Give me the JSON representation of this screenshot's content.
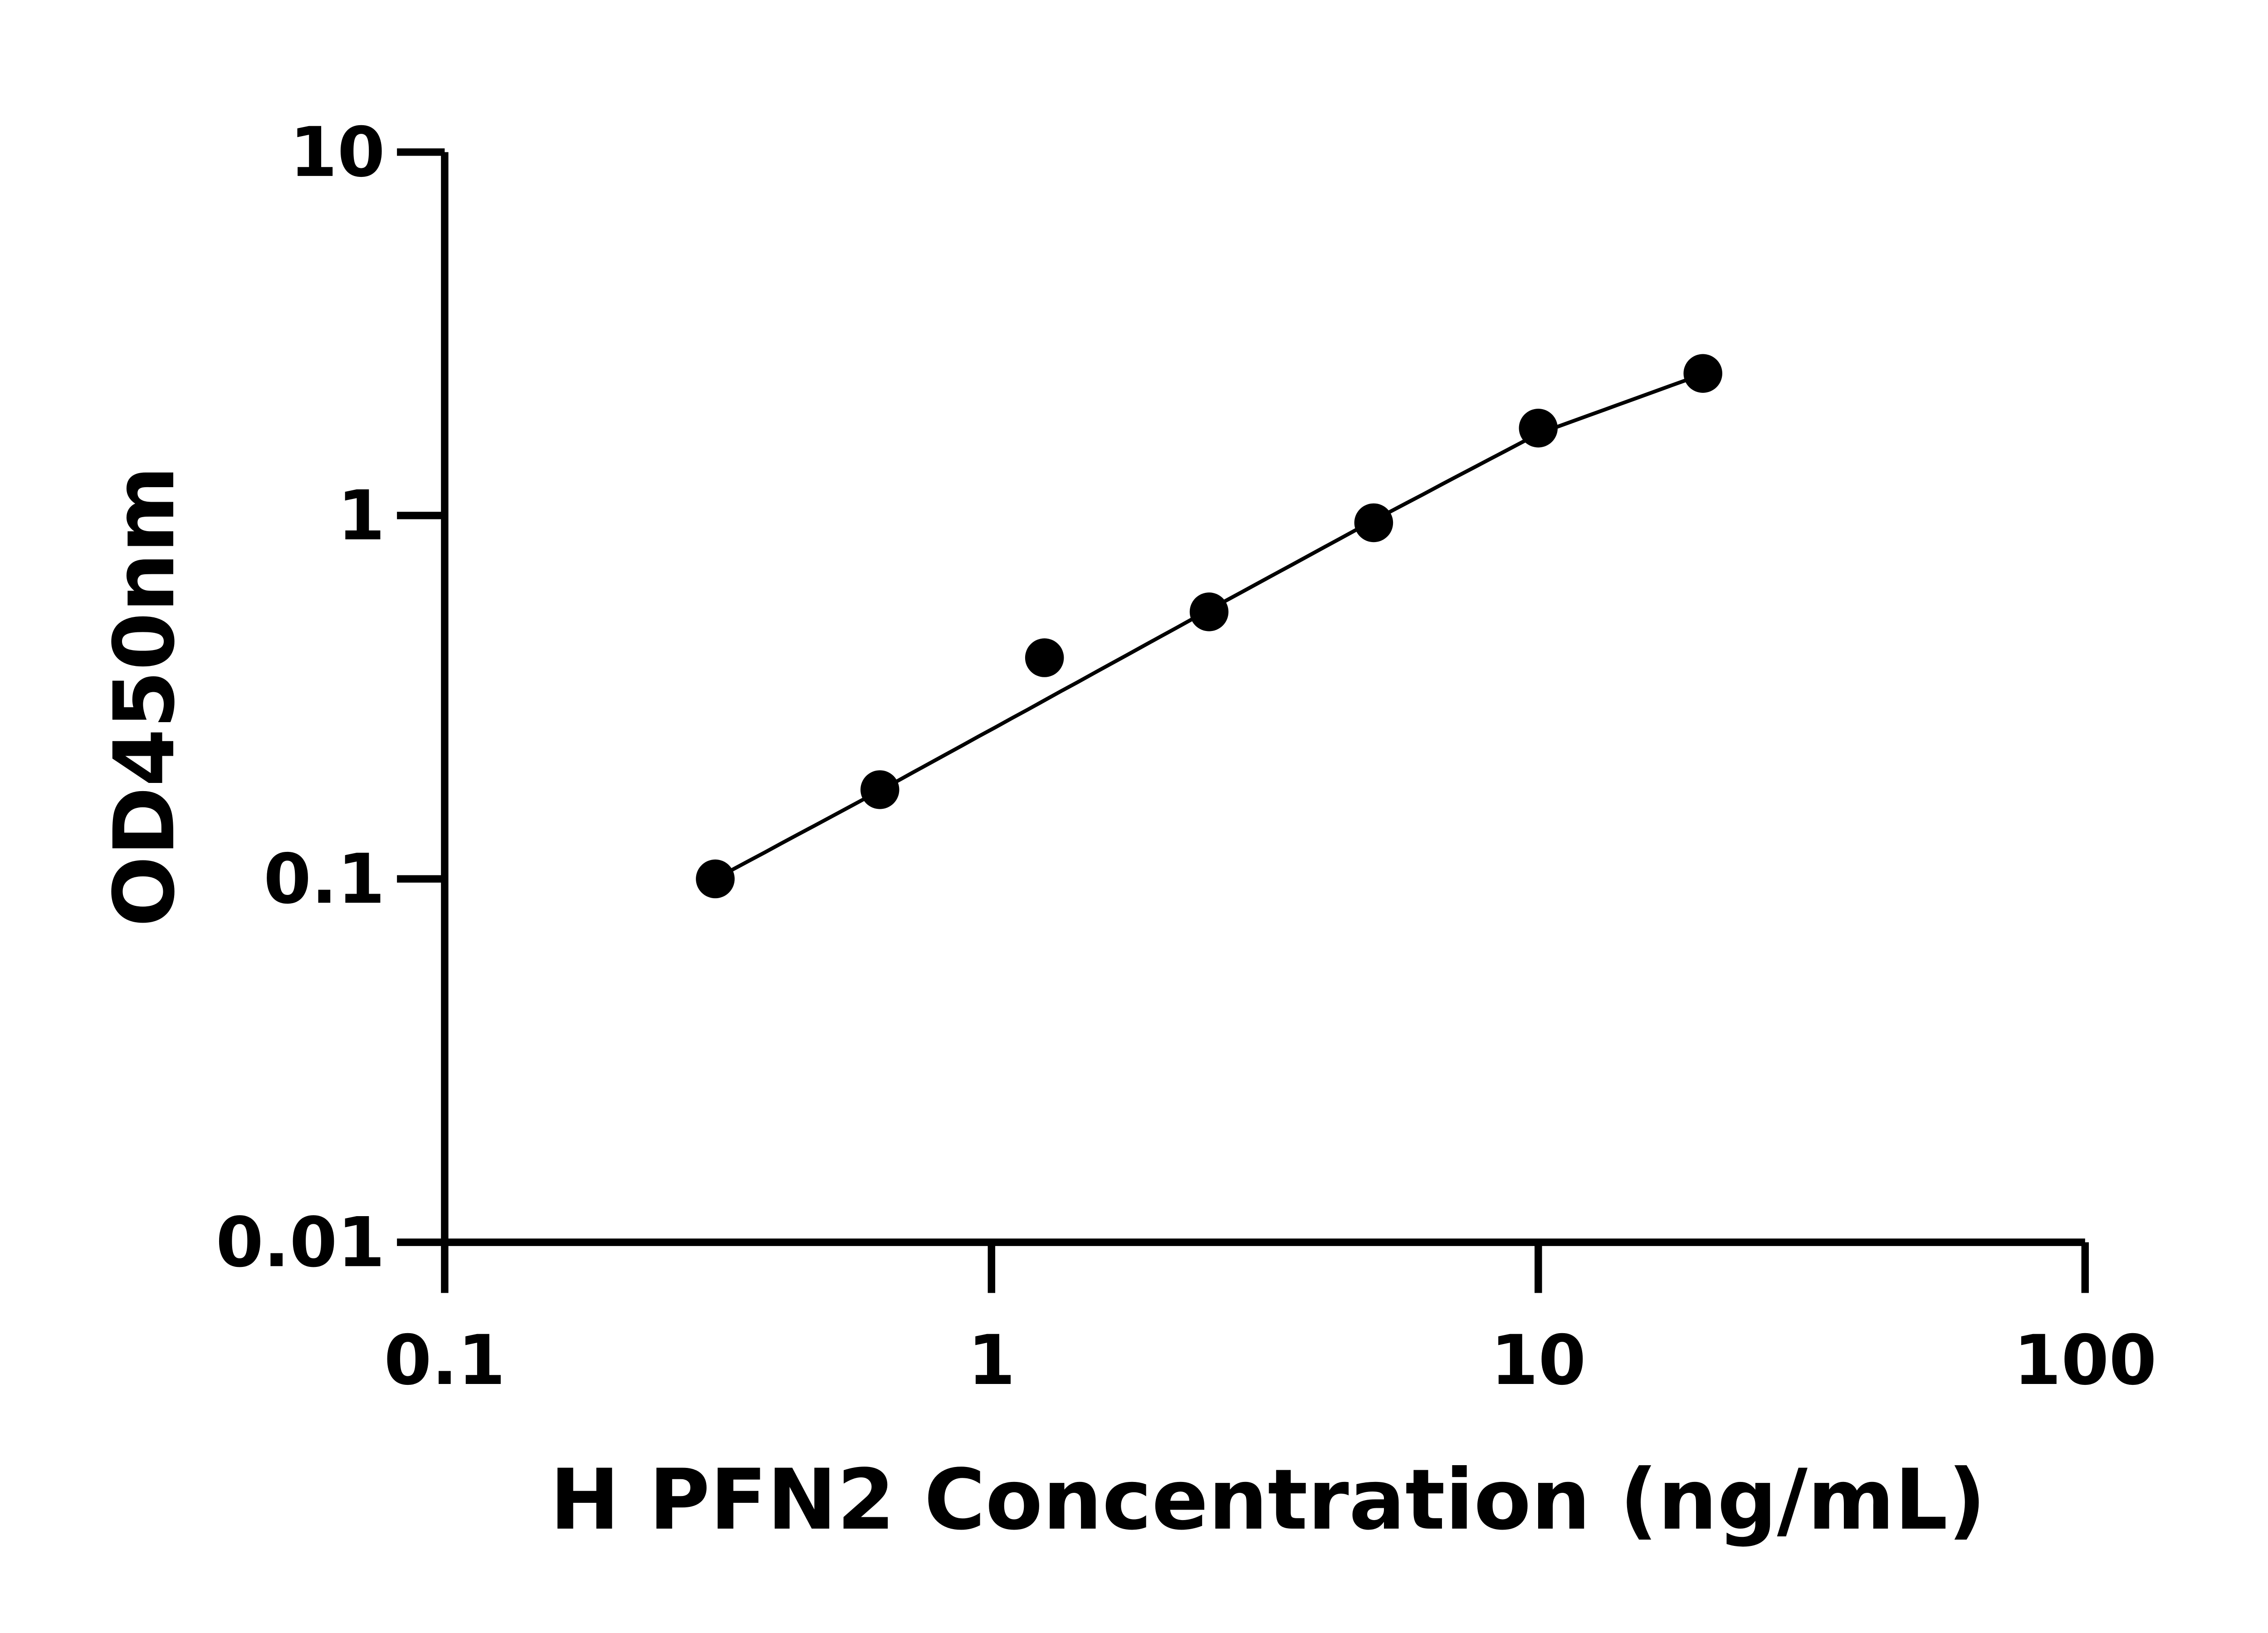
{
  "chart_data": {
    "type": "scatter",
    "title": "",
    "xlabel": "H PFN2 Concentration (ng/mL)",
    "ylabel": "OD450nm",
    "xscale": "log",
    "yscale": "log",
    "xlim": [
      0.1,
      100
    ],
    "ylim": [
      0.01,
      10
    ],
    "xticks": [
      0.1,
      1,
      10,
      100
    ],
    "xtick_labels": [
      "0.1",
      "1",
      "10",
      "100"
    ],
    "yticks": [
      0.01,
      0.1,
      1,
      10
    ],
    "ytick_labels": [
      "0.01",
      "0.1",
      "1",
      "10"
    ],
    "grid": false,
    "legend": "none",
    "marker_color": "#000000",
    "points": {
      "x": [
        0.3125,
        0.625,
        1.25,
        2.5,
        5,
        10,
        20
      ],
      "y": [
        0.1,
        0.176,
        0.406,
        0.543,
        0.955,
        1.74,
        2.46
      ]
    },
    "fit_curve": {
      "x": [
        0.3125,
        0.625,
        1.25,
        2.5,
        5,
        10,
        20
      ],
      "y": [
        0.1,
        0.175,
        0.31,
        0.55,
        0.97,
        1.68,
        2.45
      ]
    }
  }
}
